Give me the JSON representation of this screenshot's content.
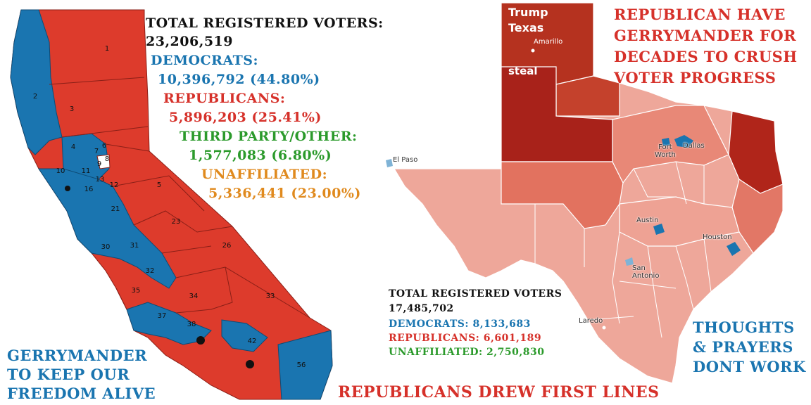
{
  "colors": {
    "democrat_blue": "#1a75b0",
    "republican_red": "#dd3b2c",
    "third_party_green": "#2b9a2b",
    "unaffiliated_orange": "#e08a1e",
    "texas_light": "#eea79a",
    "texas_mid": "#e27766",
    "texas_dark": "#b0251a"
  },
  "california": {
    "district_labels": [
      "1",
      "2",
      "3",
      "4",
      "5",
      "6",
      "7",
      "8",
      "9",
      "10",
      "11",
      "12",
      "13",
      "16",
      "21",
      "23",
      "26",
      "30",
      "31",
      "32",
      "33",
      "34",
      "35",
      "37",
      "38",
      "42",
      "56"
    ],
    "stats": {
      "total_label": "TOTAL REGISTERED VOTERS:",
      "total_value": "23,206,519",
      "dem_label": "DEMOCRATS:",
      "dem_value": "10,396,792 (44.80%)",
      "rep_label": "REPUBLICANS:",
      "rep_value": "5,896,203 (25.41%)",
      "third_label": "THIRD PARTY/OTHER:",
      "third_value": "1,577,083 (6.80%)",
      "unaff_label": "UNAFFILIATED:",
      "unaff_value": "5,336,441 (23.00%)"
    },
    "caption": "GERRYMANDER\nTO KEEP OUR\nFREEDOM ALIVE"
  },
  "texas": {
    "overlay_labels": {
      "trump": "Trump",
      "texas": "Texas",
      "steal": "steal"
    },
    "cities": {
      "amarillo": "Amarillo",
      "el_paso": "El Paso",
      "fort_worth": "Fort\nWorth",
      "dallas": "Dallas",
      "austin": "Austin",
      "houston": "Houston",
      "san_antonio": "San\nAntonio",
      "laredo": "Laredo"
    },
    "stats": {
      "total_label": "TOTAL REGISTERED VOTERS",
      "total_value": "17,485,702",
      "dem": "DEMOCRATS: 8,133,683",
      "rep": "REPUBLICANS: 6,601,189",
      "unaff": "UNAFFILIATED: 2,750,830"
    },
    "headline": "REPUBLICAN HAVE\nGERRYMANDER FOR\nDECADES TO CRUSH\nVOTER PROGRESS",
    "thoughts": "THOUGHTS\n& PRAYERS\nDONT WORK"
  },
  "footer": "REPUBLICANS DREW FIRST LINES"
}
